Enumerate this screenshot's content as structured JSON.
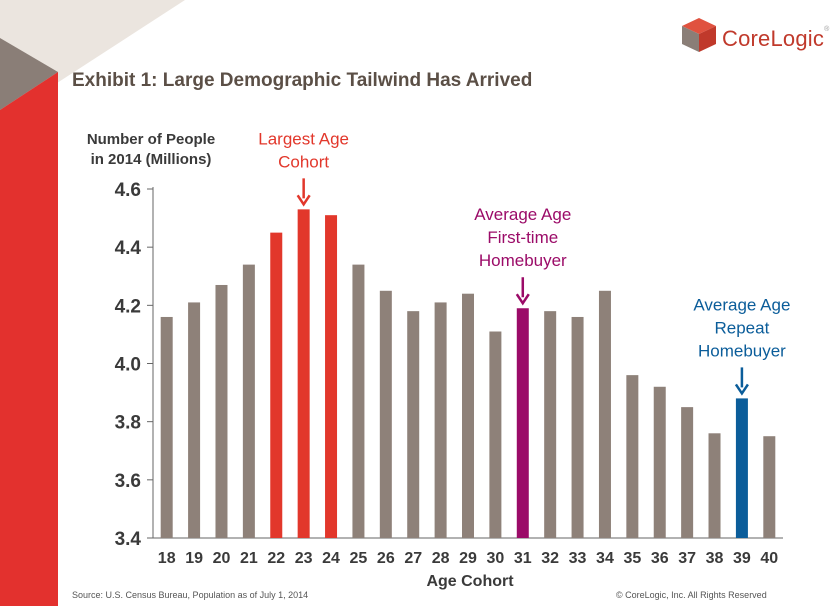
{
  "header": {
    "title": "Exhibit 1: Large Demographic Tailwind Has Arrived",
    "logo_text": "CoreLogic",
    "logo_mark": "®"
  },
  "colors": {
    "gray_bar": "#8e8179",
    "red_bar": "#e2372b",
    "purple_bar": "#9b0b68",
    "blue_bar": "#0b5d9a",
    "stripe_red": "#e3312e",
    "stripe_gray": "#8a7e77",
    "stripe_light": "#ebe5df"
  },
  "chart_data": {
    "type": "bar",
    "ylabel_lines": [
      "Number of People",
      "in 2014 (Millions)"
    ],
    "xlabel": "Age Cohort",
    "ylim": [
      3.4,
      4.6
    ],
    "yticks": [
      "3.4",
      "3.6",
      "3.8",
      "4.0",
      "4.2",
      "4.4",
      "4.6"
    ],
    "grid": false,
    "categories": [
      "18",
      "19",
      "20",
      "21",
      "22",
      "23",
      "24",
      "25",
      "26",
      "27",
      "28",
      "29",
      "30",
      "31",
      "32",
      "33",
      "34",
      "35",
      "36",
      "37",
      "38",
      "39",
      "40"
    ],
    "values": [
      4.16,
      4.21,
      4.27,
      4.34,
      4.45,
      4.53,
      4.51,
      4.34,
      4.25,
      4.18,
      4.21,
      4.24,
      4.11,
      4.19,
      4.18,
      4.16,
      4.25,
      3.96,
      3.92,
      3.85,
      3.76,
      3.88,
      3.75
    ],
    "highlight": {
      "22": "red",
      "23": "red",
      "24": "red",
      "31": "purple",
      "39": "blue"
    },
    "annotations": [
      {
        "category": "23",
        "lines": [
          "Largest Age",
          "Cohort"
        ],
        "color": "#e2372b"
      },
      {
        "category": "31",
        "lines": [
          "Average Age",
          "First-time",
          "Homebuyer"
        ],
        "color": "#9b0b68"
      },
      {
        "category": "39",
        "lines": [
          "Average Age",
          "Repeat",
          "Homebuyer"
        ],
        "color": "#0b5d9a"
      }
    ]
  },
  "footer": {
    "source": "Source: U.S. Census Bureau, Population as of July 1, 2014",
    "copyright": "© CoreLogic, Inc. All Rights Reserved"
  }
}
